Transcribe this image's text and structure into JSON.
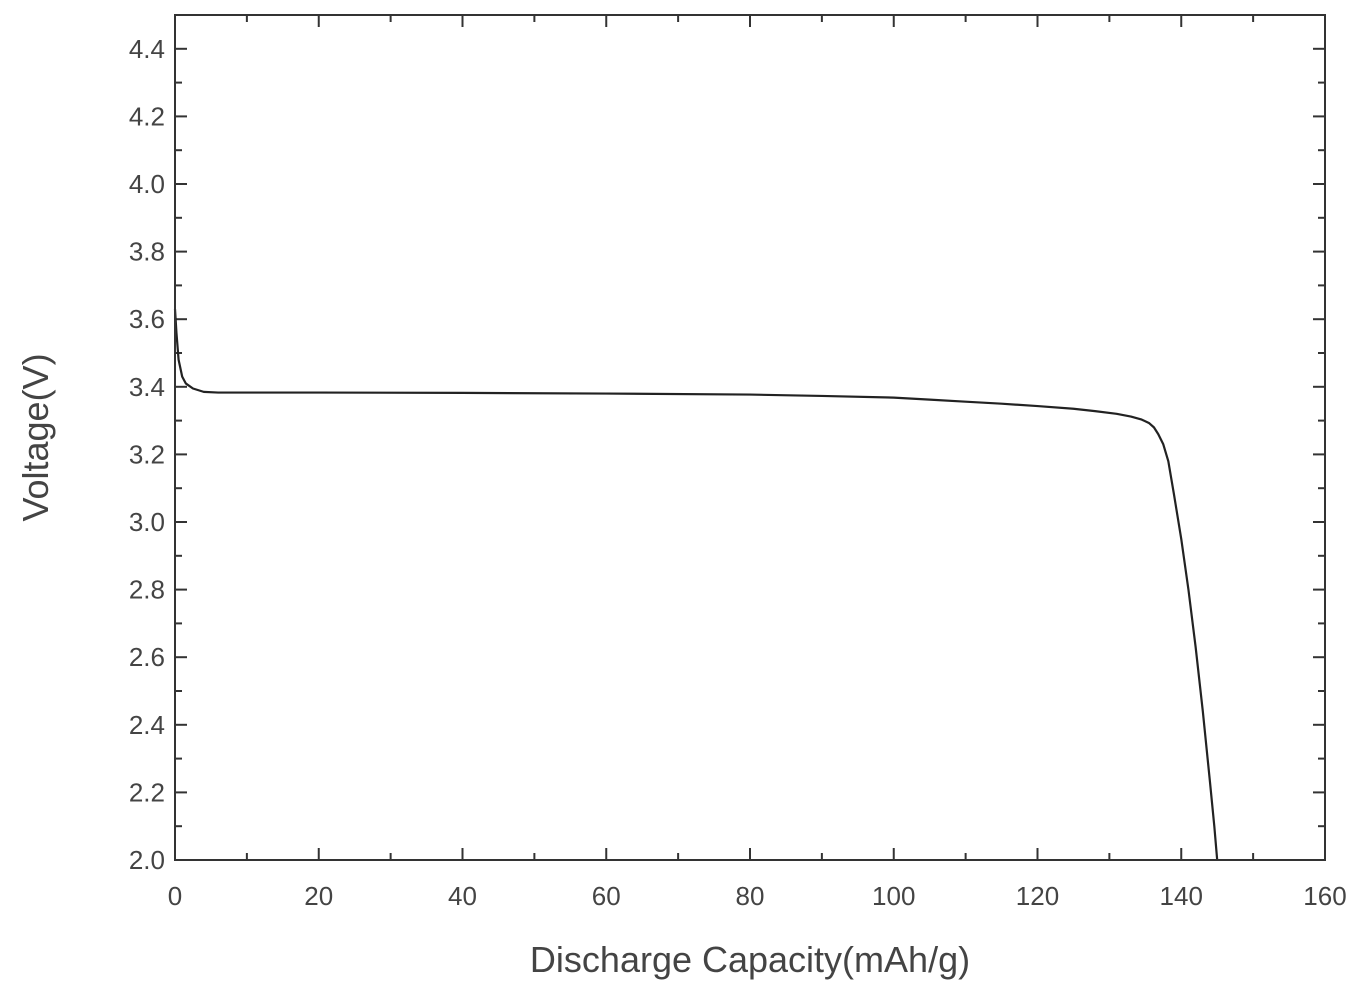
{
  "chart_data": {
    "type": "line",
    "title": "",
    "xlabel": "Discharge Capacity(mAh/g)",
    "ylabel": "Voltage(V)",
    "xlim": [
      0,
      160
    ],
    "ylim": [
      2.0,
      4.5
    ],
    "x_ticks": [
      0,
      20,
      40,
      60,
      80,
      100,
      120,
      140,
      160
    ],
    "x_minor_ticks": [
      10,
      30,
      50,
      70,
      90,
      110,
      130,
      150
    ],
    "y_ticks": [
      2.0,
      2.2,
      2.4,
      2.6,
      2.8,
      3.0,
      3.2,
      3.4,
      3.6,
      3.8,
      4.0,
      4.2,
      4.4
    ],
    "y_minor_ticks": [
      2.1,
      2.3,
      2.5,
      2.7,
      2.9,
      3.1,
      3.3,
      3.5,
      3.7,
      3.9,
      4.1,
      4.3,
      4.5
    ],
    "x_tick_labels": [
      "0",
      "20",
      "40",
      "60",
      "80",
      "100",
      "120",
      "140",
      "160"
    ],
    "y_tick_labels": [
      "2.0",
      "2.2",
      "2.4",
      "2.6",
      "2.8",
      "3.0",
      "3.2",
      "3.4",
      "3.6",
      "3.8",
      "4.0",
      "4.2",
      "4.4"
    ],
    "grid": false,
    "line_color": "#222222",
    "series": [
      {
        "x": [
          0,
          0.2,
          0.5,
          1.0,
          1.5,
          2.5,
          4,
          6,
          10,
          20,
          40,
          60,
          80,
          90,
          100,
          105,
          110,
          115,
          120,
          125,
          128,
          131,
          133,
          134.5,
          135.5,
          136.2,
          136.8,
          137.5,
          138.2,
          139,
          140,
          141,
          142,
          143,
          144,
          144.6,
          145
        ],
        "y": [
          3.63,
          3.56,
          3.48,
          3.43,
          3.41,
          3.395,
          3.385,
          3.383,
          3.383,
          3.383,
          3.382,
          3.38,
          3.377,
          3.373,
          3.368,
          3.362,
          3.356,
          3.35,
          3.343,
          3.335,
          3.328,
          3.32,
          3.312,
          3.303,
          3.293,
          3.28,
          3.26,
          3.23,
          3.18,
          3.08,
          2.95,
          2.8,
          2.63,
          2.44,
          2.23,
          2.1,
          2.0
        ]
      }
    ]
  }
}
